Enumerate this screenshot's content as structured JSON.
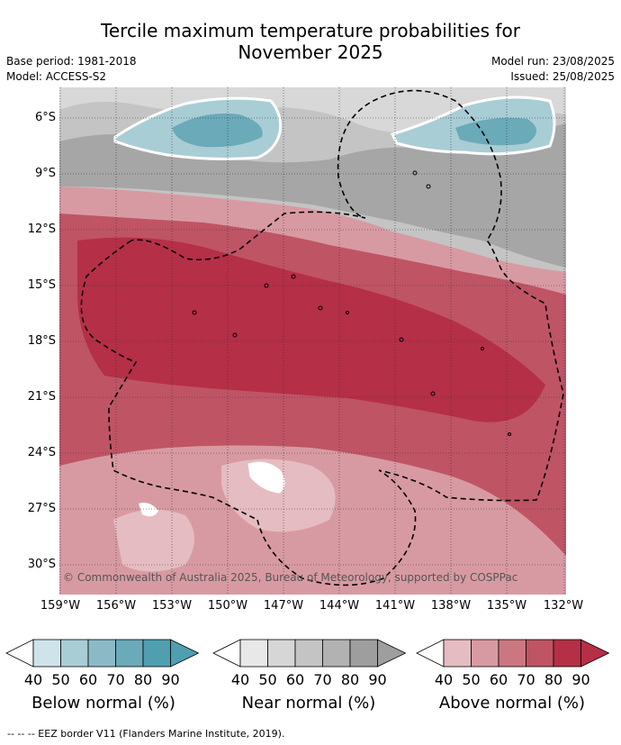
{
  "title": {
    "line1": "Tercile maximum temperature probabilities for",
    "line2": "November 2025"
  },
  "meta": {
    "base_period": "Base period: 1981-2018",
    "model": "Model: ACCESS-S2",
    "model_run": "Model run: 23/08/2025",
    "issued": "Issued: 25/08/2025"
  },
  "map": {
    "latitude_labels": [
      "6°S",
      "9°S",
      "12°S",
      "15°S",
      "18°S",
      "21°S",
      "24°S",
      "27°S",
      "30°S"
    ],
    "longitude_labels": [
      "159°W",
      "156°W",
      "153°W",
      "150°W",
      "147°W",
      "144°W",
      "141°W",
      "138°W",
      "135°W",
      "132°W"
    ],
    "copyright": "© Commonwealth of Australia 2025, Bureau of Meteorology, supported by COSPPac"
  },
  "legend": {
    "ticks": [
      "40",
      "50",
      "60",
      "70",
      "80",
      "90"
    ],
    "below": {
      "title": "Below normal (%)",
      "colors": [
        "#cfe4ea",
        "#a9cdd5",
        "#8bbac6",
        "#6aaab9",
        "#4f9fb1"
      ]
    },
    "near": {
      "title": "Near normal (%)",
      "colors": [
        "#e8e8e8",
        "#d6d6d6",
        "#c4c4c4",
        "#b2b2b2",
        "#9e9e9e"
      ]
    },
    "above": {
      "title": "Above normal (%)",
      "colors": [
        "#e5bcc1",
        "#d89aa2",
        "#cb7782",
        "#bf5465",
        "#b52f47"
      ]
    }
  },
  "footer": "--  --  -- EEZ border V11 (Flanders Marine Institute, 2019)."
}
